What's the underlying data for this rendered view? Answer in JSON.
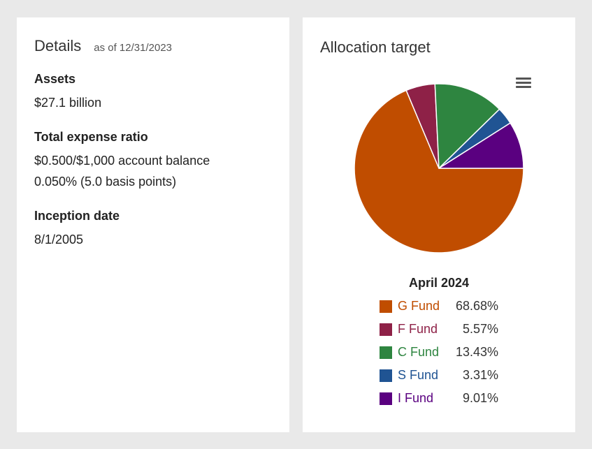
{
  "details": {
    "title": "Details",
    "as_of": "as of 12/31/2023",
    "sections": [
      {
        "label": "Assets",
        "values": [
          "$27.1 billion"
        ]
      },
      {
        "label": "Total expense ratio",
        "values": [
          "$0.500/$1,000 account balance",
          "0.050% (5.0 basis points)"
        ]
      },
      {
        "label": "Inception date",
        "values": [
          "8/1/2005"
        ]
      }
    ]
  },
  "allocation": {
    "title": "Allocation target",
    "menu_icon": "hamburger-menu-icon"
  },
  "chart_data": {
    "type": "pie",
    "title": "Allocation target",
    "legend_title": "April 2024",
    "legend_position": "bottom",
    "slices": [
      {
        "name": "G Fund",
        "value": 68.68,
        "label": "68.68%",
        "color": "#c04d00"
      },
      {
        "name": "F Fund",
        "value": 5.57,
        "label": "5.57%",
        "color": "#8e2147"
      },
      {
        "name": "C Fund",
        "value": 13.43,
        "label": "13.43%",
        "color": "#2e8540"
      },
      {
        "name": "S Fund",
        "value": 3.31,
        "label": "3.31%",
        "color": "#205493"
      },
      {
        "name": "I Fund",
        "value": 9.01,
        "label": "9.01%",
        "color": "#5a0080"
      }
    ]
  }
}
